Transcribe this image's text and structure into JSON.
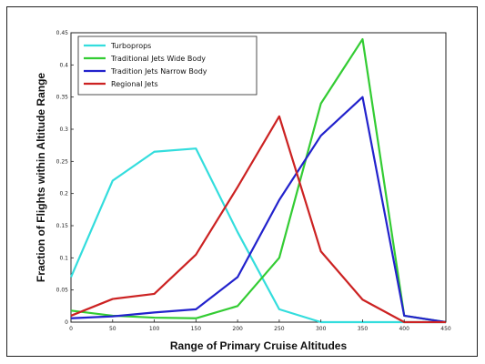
{
  "chart_data": {
    "type": "line",
    "title": "",
    "xlabel": "Range of Primary Cruise Altitudes",
    "ylabel": "Fraction of Flights within Altitude Range",
    "x": [
      0,
      50,
      100,
      150,
      200,
      250,
      300,
      350,
      400,
      450
    ],
    "xlim": [
      0,
      450
    ],
    "ylim": [
      0,
      0.45
    ],
    "xticks": [
      "0",
      "50",
      "100",
      "150",
      "200",
      "250",
      "300",
      "350",
      "400",
      "450"
    ],
    "yticks": [
      "0",
      "0.05",
      "0.1",
      "0.15",
      "0.2",
      "0.25",
      "0.3",
      "0.35",
      "0.4",
      "0.45"
    ],
    "grid": false,
    "legend_position": "top-left",
    "series": [
      {
        "name": "Turboprops",
        "color": "#33dddd",
        "values": [
          0.07,
          0.22,
          0.265,
          0.27,
          0.14,
          0.02,
          0.0,
          0.0,
          0.0,
          0.0
        ]
      },
      {
        "name": "Traditional Jets Wide Body",
        "color": "#33cc33",
        "values": [
          0.018,
          0.01,
          0.007,
          0.006,
          0.025,
          0.1,
          0.34,
          0.44,
          0.01,
          0.0
        ]
      },
      {
        "name": "Tradition Jets Narrow Body",
        "color": "#2222cc",
        "values": [
          0.006,
          0.009,
          0.015,
          0.02,
          0.07,
          0.19,
          0.29,
          0.35,
          0.01,
          0.0
        ]
      },
      {
        "name": "Regional Jets",
        "color": "#cc2222",
        "values": [
          0.01,
          0.036,
          0.044,
          0.105,
          0.21,
          0.32,
          0.11,
          0.035,
          0.0,
          0.0
        ]
      }
    ]
  }
}
